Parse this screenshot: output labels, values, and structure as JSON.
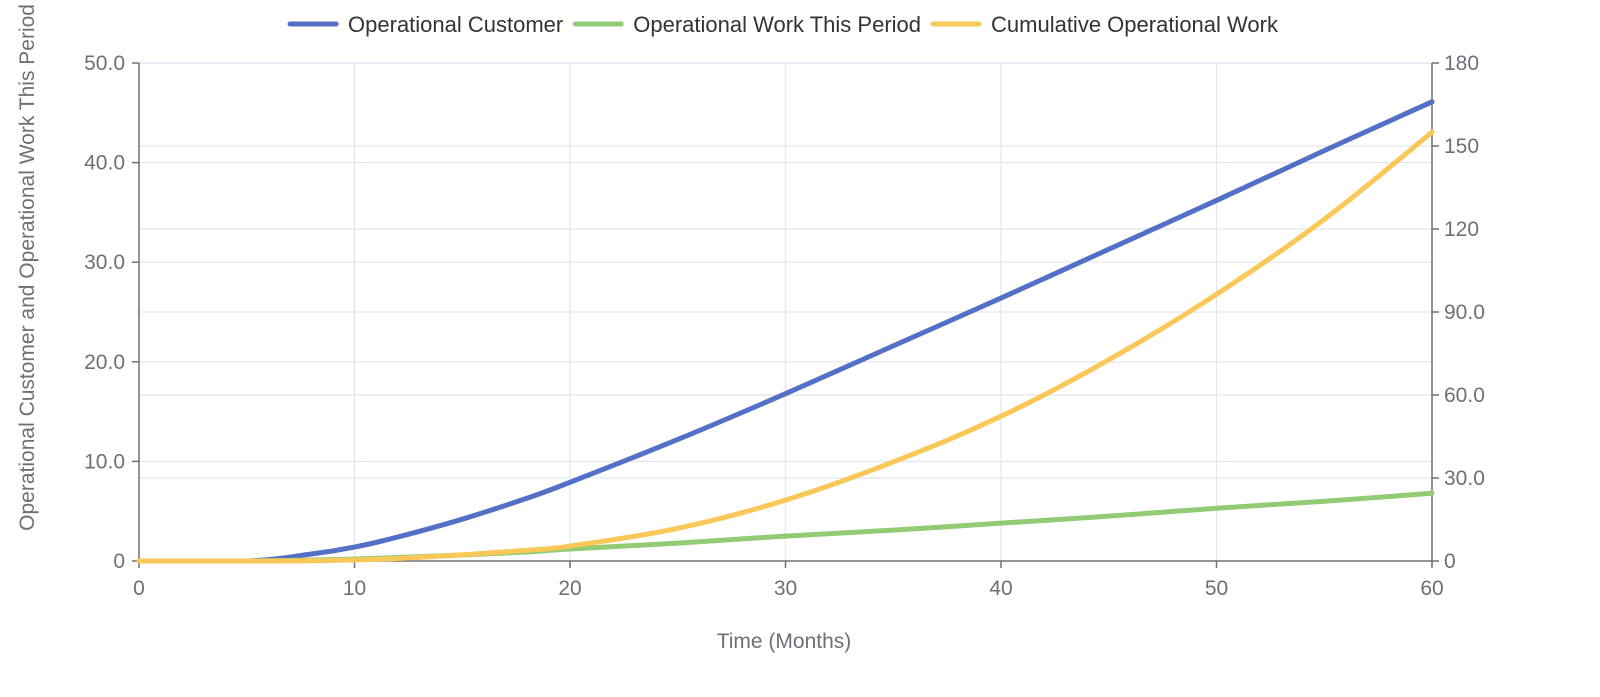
{
  "chart_data": {
    "type": "line",
    "title": "",
    "xlabel": "Time (Months)",
    "ylabel": "Operational Customer and Operational Work This Period",
    "y2label": "",
    "legend_position": "top-center",
    "grid": true,
    "xlim": [
      0,
      60
    ],
    "ylim": [
      0,
      50
    ],
    "y2lim": [
      0,
      180
    ],
    "x_ticks": [
      0,
      10,
      20,
      30,
      40,
      50,
      60
    ],
    "x_tick_labels": [
      "0",
      "10",
      "20",
      "30",
      "40",
      "50",
      "60"
    ],
    "y_ticks": [
      0,
      10,
      20,
      30,
      40,
      50
    ],
    "y_tick_labels": [
      "0",
      "10.0",
      "20.0",
      "30.0",
      "40.0",
      "50.0"
    ],
    "y2_ticks": [
      0,
      30,
      60,
      90,
      120,
      150,
      180
    ],
    "y2_tick_labels": [
      "0",
      "30.0",
      "60.0",
      "90.0",
      "120",
      "150",
      "180"
    ],
    "x": [
      0,
      5,
      8,
      10,
      12,
      15,
      18,
      20,
      25,
      30,
      35,
      40,
      45,
      50,
      55,
      60
    ],
    "series": [
      {
        "name": "Operational Customer",
        "axis": "left",
        "color": "#5470c6",
        "values": [
          0,
          0,
          0.7,
          1.4,
          2.4,
          4.2,
          6.3,
          7.9,
          12.2,
          16.8,
          21.6,
          26.4,
          31.3,
          36.2,
          41.2,
          46.1
        ]
      },
      {
        "name": "Operational Work This Period",
        "axis": "left",
        "color": "#91cc75",
        "values": [
          0,
          0,
          0.1,
          0.2,
          0.35,
          0.6,
          0.9,
          1.2,
          1.8,
          2.5,
          3.1,
          3.8,
          4.5,
          5.3,
          6.0,
          6.8
        ]
      },
      {
        "name": "Cumulative Operational Work",
        "axis": "right",
        "color": "#fac858",
        "values": [
          0,
          0,
          0.1,
          0.4,
          0.9,
          2.2,
          3.9,
          5.4,
          11.8,
          22.0,
          35.8,
          52.3,
          72.7,
          96.4,
          123.5,
          155.0
        ]
      }
    ]
  }
}
